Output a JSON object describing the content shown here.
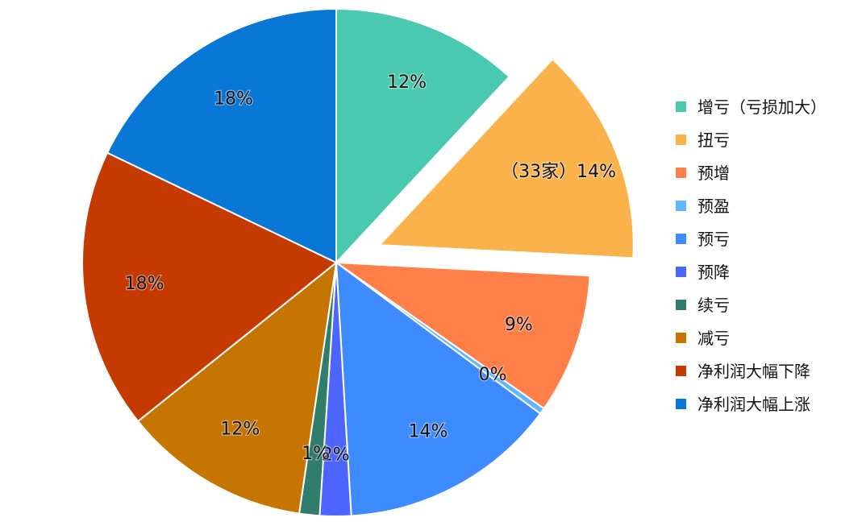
{
  "chart_data": {
    "type": "pie",
    "title": "",
    "series": [
      {
        "name": "增亏（亏损加大）",
        "value": 12,
        "label": "12%",
        "color": "#48c9b0",
        "exploded": false
      },
      {
        "name": "扭亏",
        "value": 14,
        "label": "（33家）14%",
        "color": "#fbb24a",
        "exploded": true
      },
      {
        "name": "预增",
        "value": 9,
        "label": "9%",
        "color": "#ff7f48",
        "exploded": false
      },
      {
        "name": "预盈",
        "value": 0.4,
        "label": "0%",
        "color": "#5fb7ff",
        "exploded": false
      },
      {
        "name": "预亏",
        "value": 14,
        "label": "14%",
        "color": "#3d8bff",
        "exploded": false
      },
      {
        "name": "预降",
        "value": 2,
        "label": "2%",
        "color": "#4d64ff",
        "exploded": false
      },
      {
        "name": "续亏",
        "value": 1.3,
        "label": "1%",
        "color": "#2f7d6a",
        "exploded": false
      },
      {
        "name": "减亏",
        "value": 12,
        "label": "12%",
        "color": "#c57500",
        "exploded": false
      },
      {
        "name": "净利润大幅下降",
        "value": 18,
        "label": "18%",
        "color": "#c53a00",
        "exploded": false
      },
      {
        "name": "净利润大幅上涨",
        "value": 18,
        "label": "18%",
        "color": "#0877d5",
        "exploded": false
      }
    ],
    "legend": {
      "position": "right"
    }
  }
}
